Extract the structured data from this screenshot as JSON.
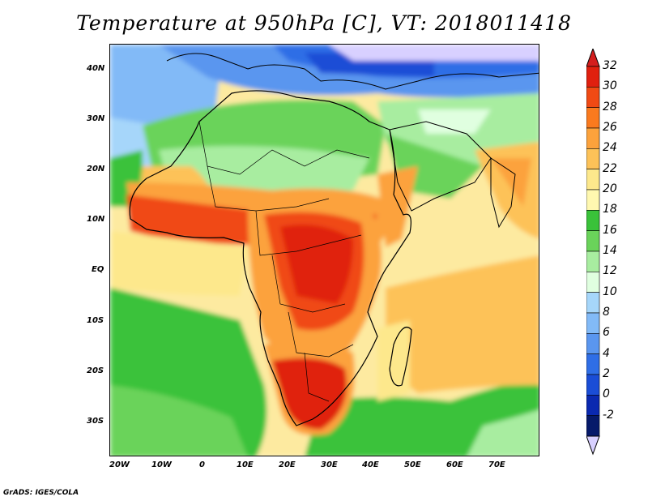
{
  "title": "Temperature at 950hPa [C], VT: 2018011418",
  "footer": "GrADS: IGES/COLA",
  "map": {
    "lon_range": [
      -23,
      80
    ],
    "lat_range": [
      -36,
      45
    ],
    "lon_ticks": [
      "20W",
      "10W",
      "0",
      "10E",
      "20E",
      "30E",
      "40E",
      "50E",
      "60E",
      "70E"
    ],
    "lat_ticks": [
      "40N",
      "30N",
      "20N",
      "10N",
      "EQ",
      "10S",
      "20S",
      "30S"
    ]
  },
  "colorbar": {
    "labels": [
      "32",
      "30",
      "28",
      "26",
      "24",
      "22",
      "20",
      "18",
      "16",
      "14",
      "12",
      "10",
      "8",
      "6",
      "4",
      "2",
      "0",
      "-2"
    ],
    "colors": [
      "#e0200f",
      "#f04a14",
      "#fa7a1e",
      "#fca23c",
      "#fdc258",
      "#fde88c",
      "#fff8b0",
      "#3ac23a",
      "#6ad35a",
      "#a8eda0",
      "#e0ffe0",
      "#a6d6fa",
      "#82baf7",
      "#5a96ef",
      "#2f6ee6",
      "#1a4dd6",
      "#0a29b0",
      "#061a6a"
    ],
    "under_color": "#d8d0ff",
    "over_color": "#d41e1e"
  }
}
